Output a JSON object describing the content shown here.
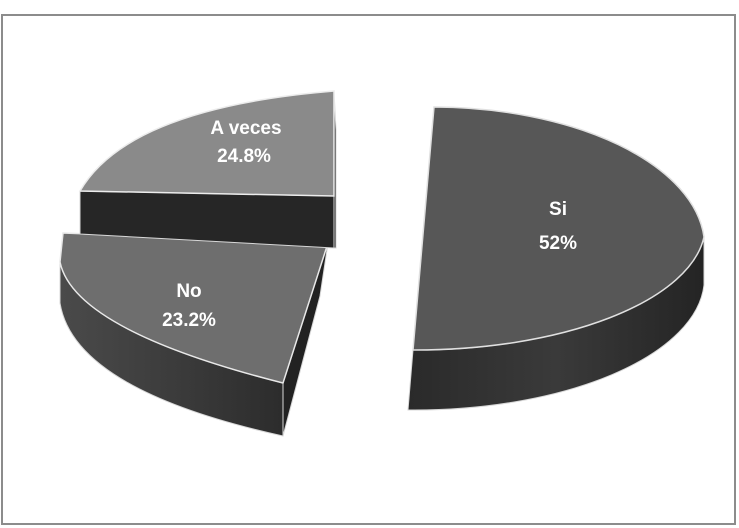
{
  "chart_data": {
    "type": "pie",
    "variant": "3d-exploded",
    "title": "",
    "legend": "none",
    "slices": [
      {
        "label": "Si",
        "value_label": "52%",
        "value": 52,
        "color": "#575757"
      },
      {
        "label": "No",
        "value_label": "23.2%",
        "value": 23.2,
        "color": "#6e6e6e"
      },
      {
        "label": "A veces",
        "value_label": "24.8%",
        "value": 24.8,
        "color": "#8a8a8a"
      }
    ]
  }
}
